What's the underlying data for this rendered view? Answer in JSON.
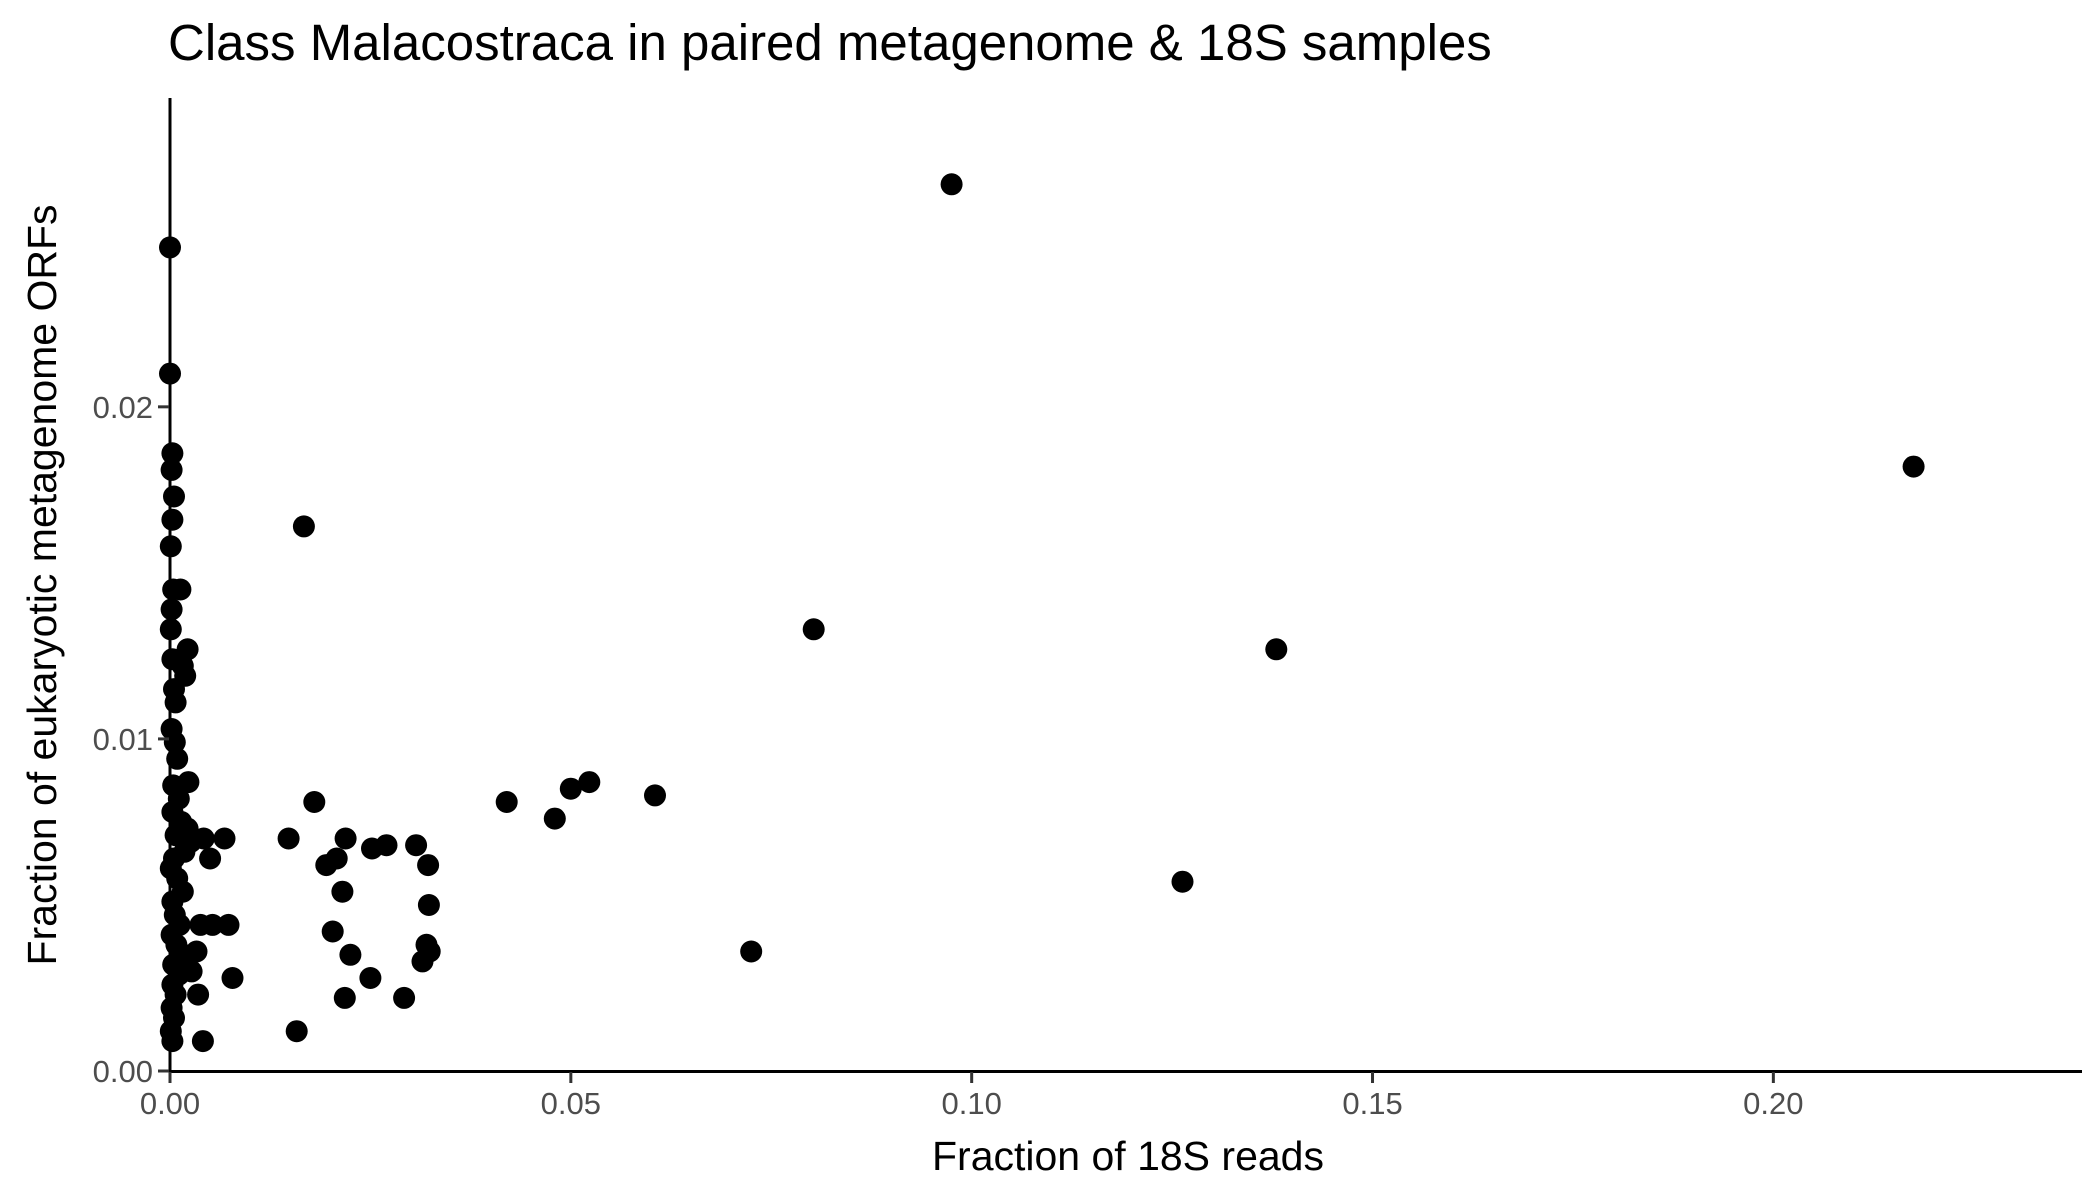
{
  "chart_data": {
    "type": "scatter",
    "title": "Class Malacostraca in paired metagenome & 18S samples",
    "xlabel": "Fraction of 18S reads",
    "ylabel": "Fraction of eukaryotic metagenome ORFs",
    "xlim": [
      0,
      0.2385
    ],
    "ylim": [
      0,
      0.0293
    ],
    "x_ticks": [
      0,
      0.05,
      0.1,
      0.15,
      0.2
    ],
    "x_tick_labels": [
      "0.00",
      "0.05",
      "0.10",
      "0.15",
      "0.20"
    ],
    "y_ticks": [
      0,
      0.01,
      0.02
    ],
    "y_tick_labels": [
      "0.00",
      "0.01",
      "0.02"
    ],
    "grid": false,
    "legend": "none",
    "point_color": "#000000",
    "points": [
      {
        "x": 0.0,
        "y": 0.0248
      },
      {
        "x": 0.0,
        "y": 0.021
      },
      {
        "x": 0.0003,
        "y": 0.0186
      },
      {
        "x": 0.0002,
        "y": 0.0181
      },
      {
        "x": 0.0005,
        "y": 0.0173
      },
      {
        "x": 0.0003,
        "y": 0.0166
      },
      {
        "x": 0.0001,
        "y": 0.0158
      },
      {
        "x": 0.0013,
        "y": 0.0145
      },
      {
        "x": 0.0004,
        "y": 0.0145
      },
      {
        "x": 0.0002,
        "y": 0.0139
      },
      {
        "x": 0.0001,
        "y": 0.0133
      },
      {
        "x": 0.0022,
        "y": 0.0127
      },
      {
        "x": 0.0003,
        "y": 0.0124
      },
      {
        "x": 0.0016,
        "y": 0.0122
      },
      {
        "x": 0.0019,
        "y": 0.0119
      },
      {
        "x": 0.0005,
        "y": 0.0115
      },
      {
        "x": 0.0007,
        "y": 0.0111
      },
      {
        "x": 0.0002,
        "y": 0.0103
      },
      {
        "x": 0.0006,
        "y": 0.0099
      },
      {
        "x": 0.0009,
        "y": 0.0094
      },
      {
        "x": 0.0023,
        "y": 0.0087
      },
      {
        "x": 0.0004,
        "y": 0.0086
      },
      {
        "x": 0.0011,
        "y": 0.0082
      },
      {
        "x": 0.0003,
        "y": 0.0078
      },
      {
        "x": 0.0014,
        "y": 0.0075
      },
      {
        "x": 0.0022,
        "y": 0.0073
      },
      {
        "x": 0.0007,
        "y": 0.0071
      },
      {
        "x": 0.0026,
        "y": 0.0069
      },
      {
        "x": 0.0018,
        "y": 0.0066
      },
      {
        "x": 0.0005,
        "y": 0.0064
      },
      {
        "x": 0.0001,
        "y": 0.0061
      },
      {
        "x": 0.0009,
        "y": 0.0058
      },
      {
        "x": 0.0016,
        "y": 0.0054
      },
      {
        "x": 0.0003,
        "y": 0.0051
      },
      {
        "x": 0.0006,
        "y": 0.0047
      },
      {
        "x": 0.0012,
        "y": 0.0044
      },
      {
        "x": 0.0002,
        "y": 0.0041
      },
      {
        "x": 0.0008,
        "y": 0.0038
      },
      {
        "x": 0.0017,
        "y": 0.0035
      },
      {
        "x": 0.0004,
        "y": 0.0032
      },
      {
        "x": 0.0011,
        "y": 0.0029
      },
      {
        "x": 0.0003,
        "y": 0.0026
      },
      {
        "x": 0.0007,
        "y": 0.0023
      },
      {
        "x": 0.0002,
        "y": 0.0019
      },
      {
        "x": 0.0005,
        "y": 0.0016
      },
      {
        "x": 0.0001,
        "y": 0.0012
      },
      {
        "x": 0.0003,
        "y": 0.0009
      },
      {
        "x": 0.0027,
        "y": 0.003
      },
      {
        "x": 0.0033,
        "y": 0.0036
      },
      {
        "x": 0.0035,
        "y": 0.0023
      },
      {
        "x": 0.0038,
        "y": 0.0044
      },
      {
        "x": 0.0041,
        "y": 0.0009
      },
      {
        "x": 0.0042,
        "y": 0.007
      },
      {
        "x": 0.005,
        "y": 0.0064
      },
      {
        "x": 0.0053,
        "y": 0.0044
      },
      {
        "x": 0.0068,
        "y": 0.007
      },
      {
        "x": 0.0073,
        "y": 0.0044
      },
      {
        "x": 0.0078,
        "y": 0.0028
      },
      {
        "x": 0.0148,
        "y": 0.007
      },
      {
        "x": 0.0158,
        "y": 0.0012
      },
      {
        "x": 0.0167,
        "y": 0.0164
      },
      {
        "x": 0.018,
        "y": 0.0081
      },
      {
        "x": 0.0195,
        "y": 0.0062
      },
      {
        "x": 0.0203,
        "y": 0.0042
      },
      {
        "x": 0.0208,
        "y": 0.0064
      },
      {
        "x": 0.0215,
        "y": 0.0054
      },
      {
        "x": 0.0218,
        "y": 0.0022
      },
      {
        "x": 0.0219,
        "y": 0.007
      },
      {
        "x": 0.0225,
        "y": 0.0035
      },
      {
        "x": 0.025,
        "y": 0.0028
      },
      {
        "x": 0.0252,
        "y": 0.0067
      },
      {
        "x": 0.027,
        "y": 0.0068
      },
      {
        "x": 0.0292,
        "y": 0.0022
      },
      {
        "x": 0.0307,
        "y": 0.0068
      },
      {
        "x": 0.0315,
        "y": 0.0033
      },
      {
        "x": 0.032,
        "y": 0.0038
      },
      {
        "x": 0.0322,
        "y": 0.0062
      },
      {
        "x": 0.0323,
        "y": 0.005
      },
      {
        "x": 0.0324,
        "y": 0.0036
      },
      {
        "x": 0.042,
        "y": 0.0081
      },
      {
        "x": 0.048,
        "y": 0.0076
      },
      {
        "x": 0.05,
        "y": 0.0085
      },
      {
        "x": 0.0523,
        "y": 0.0087
      },
      {
        "x": 0.0605,
        "y": 0.0083
      },
      {
        "x": 0.0725,
        "y": 0.0036
      },
      {
        "x": 0.0803,
        "y": 0.0133
      },
      {
        "x": 0.0975,
        "y": 0.0267
      },
      {
        "x": 0.1263,
        "y": 0.0057
      },
      {
        "x": 0.138,
        "y": 0.0127
      },
      {
        "x": 0.2175,
        "y": 0.0182
      }
    ]
  }
}
